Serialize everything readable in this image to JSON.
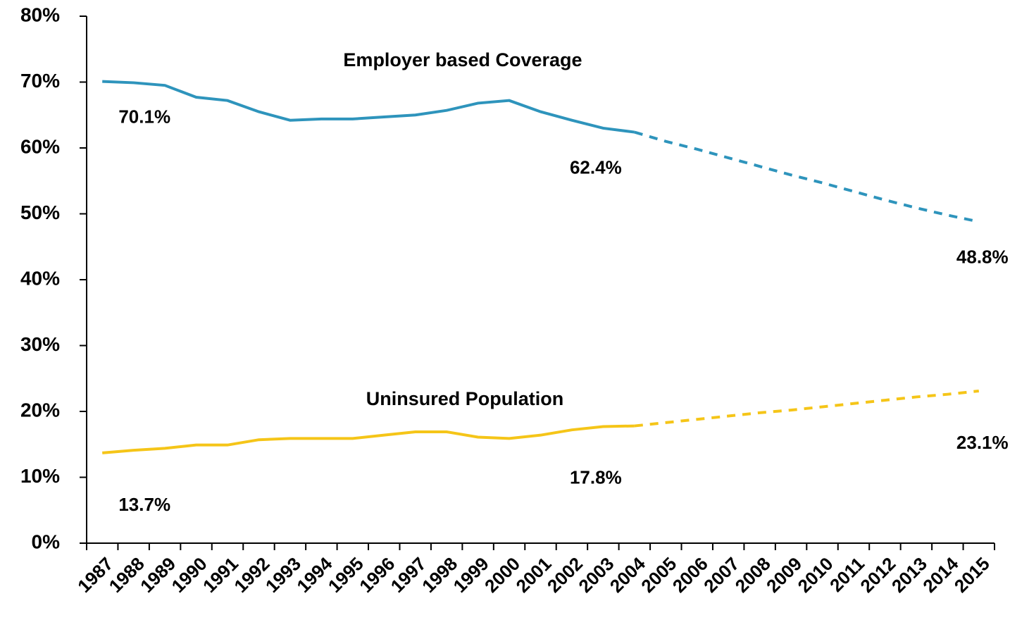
{
  "chart_data": {
    "type": "line",
    "categories": [
      "1987",
      "1988",
      "1989",
      "1990",
      "1991",
      "1992",
      "1993",
      "1994",
      "1995",
      "1996",
      "1997",
      "1998",
      "1999",
      "2000",
      "2001",
      "2002",
      "2003",
      "2004",
      "2005",
      "2006",
      "2007",
      "2008",
      "2009",
      "2010",
      "2011",
      "2012",
      "2013",
      "2014",
      "2015"
    ],
    "projection_from": "2004",
    "series": [
      {
        "name": "Employer based Coverage",
        "color": "#2e94bc",
        "values": [
          70.1,
          69.9,
          69.5,
          67.7,
          67.2,
          65.5,
          64.2,
          64.4,
          64.4,
          64.7,
          65.0,
          65.7,
          66.8,
          67.2,
          65.5,
          64.2,
          63.0,
          62.4,
          61.0,
          59.8,
          58.5,
          57.2,
          55.9,
          54.7,
          53.4,
          52.1,
          50.9,
          49.8,
          48.8
        ],
        "value_labels": [
          "70.1%",
          null,
          null,
          null,
          null,
          null,
          null,
          null,
          null,
          null,
          null,
          null,
          null,
          null,
          null,
          null,
          null,
          "62.4%",
          null,
          null,
          null,
          null,
          null,
          null,
          null,
          null,
          null,
          null,
          "48.8%"
        ]
      },
      {
        "name": "Uninsured Population",
        "color": "#f5c518",
        "values": [
          13.7,
          14.1,
          14.4,
          14.9,
          14.9,
          15.7,
          15.9,
          15.9,
          15.9,
          16.4,
          16.9,
          16.9,
          16.1,
          15.9,
          16.4,
          17.2,
          17.7,
          17.8,
          18.3,
          18.8,
          19.3,
          19.8,
          20.2,
          20.7,
          21.2,
          21.7,
          22.2,
          22.6,
          23.1
        ],
        "value_labels": [
          "13.7%",
          null,
          null,
          null,
          null,
          null,
          null,
          null,
          null,
          null,
          null,
          null,
          null,
          null,
          null,
          null,
          null,
          "17.8%",
          null,
          null,
          null,
          null,
          null,
          null,
          null,
          null,
          null,
          null,
          "23.1%"
        ]
      }
    ],
    "ylim": [
      0,
      80
    ],
    "yticks": [
      {
        "value": 0,
        "label": "0%"
      },
      {
        "value": 10,
        "label": "10%"
      },
      {
        "value": 20,
        "label": "20%"
      },
      {
        "value": 30,
        "label": "30%"
      },
      {
        "value": 40,
        "label": "40%"
      },
      {
        "value": 50,
        "label": "50%"
      },
      {
        "value": 60,
        "label": "60%"
      },
      {
        "value": 70,
        "label": "70%"
      },
      {
        "value": 80,
        "label": "80%"
      }
    ],
    "grid": false
  }
}
